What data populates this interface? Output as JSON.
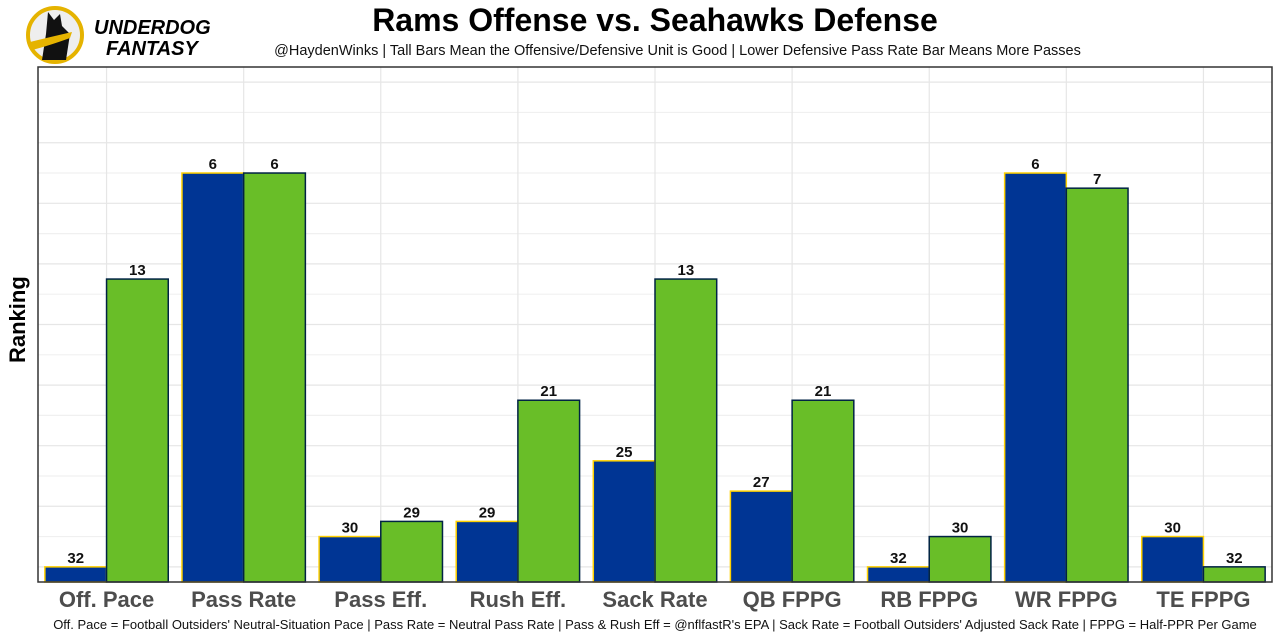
{
  "logo": {
    "text_line1": "UNDERDOG",
    "text_line2": "FANTASY"
  },
  "chart_data": {
    "type": "bar",
    "title": "Rams Offense vs. Seahawks Defense",
    "subtitle": "@HaydenWinks | Tall Bars Mean the Offensive/Defensive Unit is Good | Lower Defensive Pass Rate Bar Means More Passes",
    "ylabel": "Ranking",
    "xlabel": "",
    "footer": "Off. Pace = Football Outsiders' Neutral-Situation Pace | Pass Rate = Neutral Pass Rate | Pass & Rush Eff = @nflfastR's EPA | Sack Rate = Football Outsiders' Adjusted Sack Rate | FPPG = Half-PPR Per Game",
    "categories": [
      "Off. Pace",
      "Pass Rate",
      "Pass Eff.",
      "Rush Eff.",
      "Sack Rate",
      "QB FPPG",
      "RB FPPG",
      "WR FPPG",
      "TE FPPG"
    ],
    "series": [
      {
        "values": [
          32,
          6,
          30,
          29,
          25,
          27,
          32,
          6,
          30
        ],
        "color": "#003594",
        "outline": "#FFD100"
      },
      {
        "values": [
          13,
          6,
          29,
          21,
          13,
          21,
          30,
          7,
          32
        ],
        "color": "#69BE28",
        "outline": "#002244"
      }
    ],
    "y_axis": "rank (1 = best, tallest bar); tick labels hidden",
    "rank_count": 32,
    "grid": true,
    "legend": "none"
  }
}
